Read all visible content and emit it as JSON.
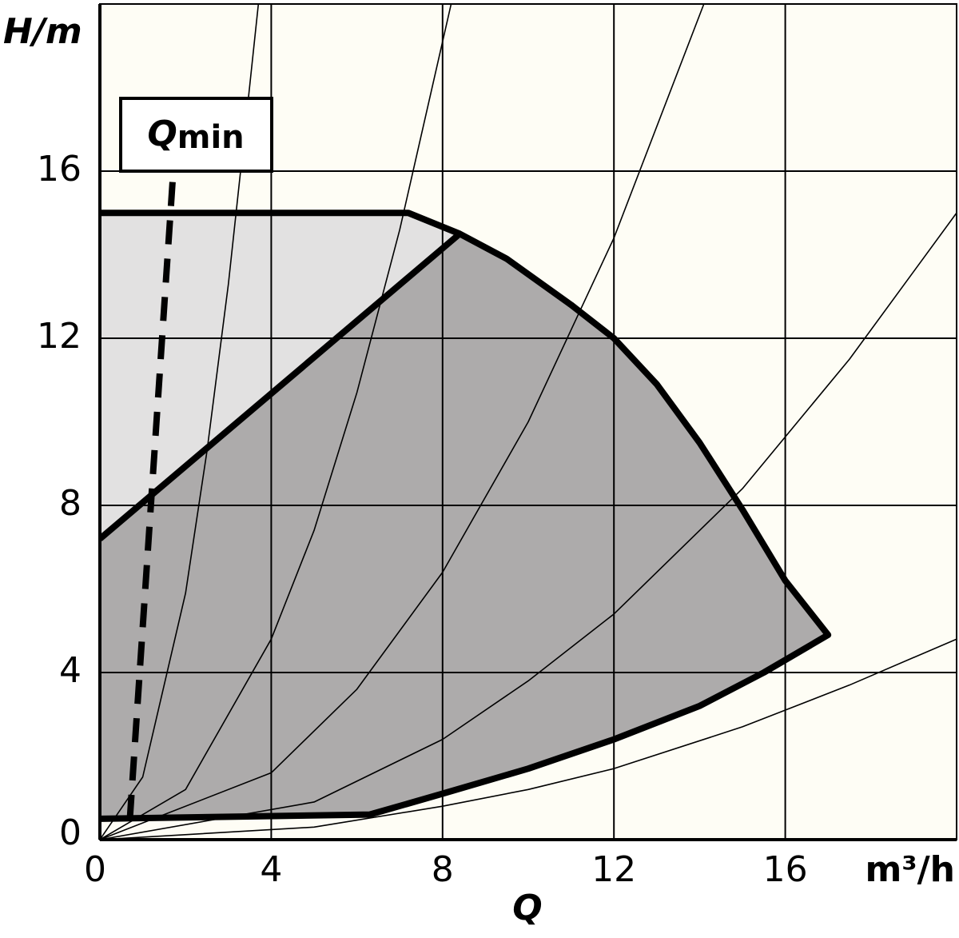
{
  "chart_data": {
    "type": "line",
    "xlabel": "Q",
    "xunit": "m³/h",
    "ylabel": "H/m",
    "xlim": [
      0,
      20
    ],
    "ylim": [
      0,
      20
    ],
    "xticks": [
      0,
      4,
      8,
      12,
      16
    ],
    "yticks": [
      0,
      4,
      8,
      12,
      16
    ],
    "grid": true,
    "background": "#fefdf5",
    "areas": [
      {
        "color": "#e2e1e1",
        "x": [
          0,
          7.2,
          8.4,
          0
        ],
        "values": [
          15,
          15,
          14.5,
          7.2
        ]
      },
      {
        "color": "#adabab",
        "x": [
          0,
          8.4,
          9.5,
          11,
          12,
          13,
          14,
          15,
          16,
          17,
          15.5,
          14,
          12,
          10,
          8,
          6.3,
          0
        ],
        "values": [
          7.2,
          14.5,
          13.9,
          12.8,
          12,
          10.9,
          9.5,
          7.9,
          6.2,
          4.9,
          4,
          3.2,
          2.4,
          1.7,
          1.1,
          0.6,
          0.5
        ]
      }
    ],
    "series": [
      {
        "color": "#000000",
        "style": "thin",
        "x": [
          0,
          1,
          2,
          2.5,
          3,
          3.4,
          3.7
        ],
        "values": [
          0,
          1.5,
          5.9,
          9.3,
          13.3,
          17.1,
          20
        ]
      },
      {
        "color": "#000000",
        "style": "thin",
        "x": [
          0,
          2,
          4,
          5,
          6,
          7,
          8.2
        ],
        "values": [
          0,
          1.2,
          4.8,
          7.4,
          10.7,
          14.6,
          20
        ]
      },
      {
        "color": "#000000",
        "style": "thin",
        "x": [
          0,
          4,
          6,
          8,
          10,
          12,
          14.1
        ],
        "values": [
          0,
          1.6,
          3.6,
          6.4,
          10,
          14.4,
          20
        ]
      },
      {
        "color": "#000000",
        "style": "thin",
        "x": [
          0,
          5,
          8,
          10,
          12,
          15,
          17.5,
          20
        ],
        "values": [
          0,
          0.9,
          2.4,
          3.8,
          5.4,
          8.4,
          11.5,
          15
        ]
      },
      {
        "color": "#000000",
        "style": "thin",
        "x": [
          0,
          5,
          8,
          10,
          12,
          15,
          17.5,
          20
        ],
        "values": [
          0,
          0.3,
          0.8,
          1.2,
          1.7,
          2.7,
          3.7,
          4.8
        ]
      },
      {
        "color": "#000000",
        "style": "thick",
        "x": [
          0,
          7.2,
          8.4,
          9.5,
          11,
          12,
          13,
          14,
          15,
          16,
          17,
          15.5,
          14,
          12,
          10,
          8,
          6.3,
          0
        ],
        "values": [
          15,
          15,
          14.5,
          13.9,
          12.8,
          12,
          10.9,
          9.5,
          7.9,
          6.2,
          4.9,
          4,
          3.2,
          2.4,
          1.7,
          1.1,
          0.6,
          0.5
        ]
      },
      {
        "color": "#000000",
        "style": "thick",
        "x": [
          0,
          8.4
        ],
        "values": [
          7.2,
          14.5
        ]
      },
      {
        "color": "#000000",
        "style": "dashed",
        "x": [
          0.7,
          1.7
        ],
        "values": [
          0.5,
          15.8
        ]
      }
    ],
    "annotation": {
      "text": "Q",
      "subscript": "min"
    }
  }
}
